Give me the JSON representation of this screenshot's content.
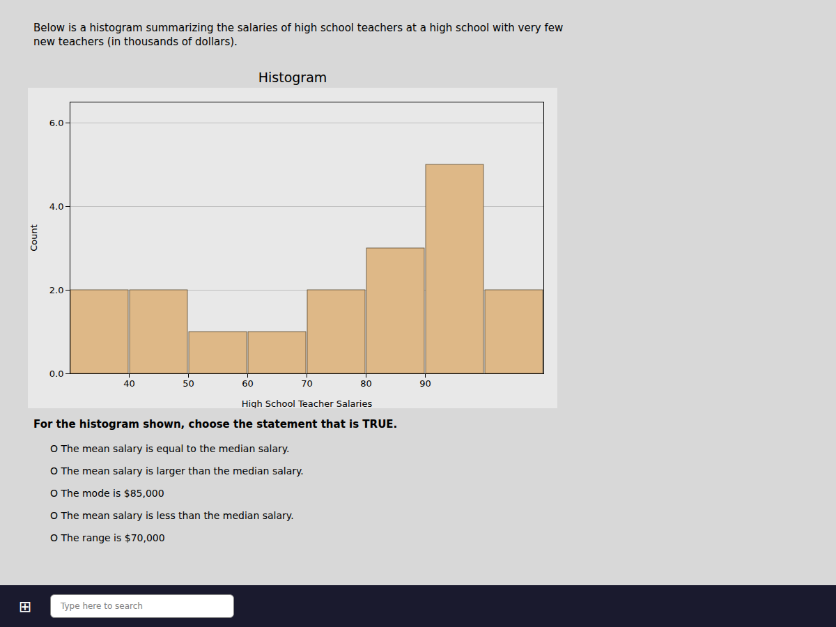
{
  "chart_data": {
    "type": "histogram",
    "title": "Histogram",
    "subtitle": "Below is a histogram summarizing the salaries of high school teachers at a high school with very few\nnew teachers (in thousands of dollars).",
    "xlabel": "High School Teacher Salaries",
    "ylabel": "Count",
    "bins": [
      30,
      40,
      50,
      60,
      70,
      80,
      90,
      100,
      110
    ],
    "values": [
      2,
      2,
      1,
      1,
      2,
      3,
      5,
      2
    ],
    "color": "#DEB887",
    "xlim": [
      30,
      110
    ],
    "xticks": [
      40,
      50,
      60,
      70,
      80,
      90
    ],
    "ylim": [
      0,
      6.5
    ],
    "yticks": [
      0,
      2,
      4,
      6
    ],
    "grid": true,
    "annotations": [
      "For the histogram shown, choose the statement that is TRUE.",
      "O The mean salary is equal to the median salary.",
      "O The mean salary is larger than the median salary.",
      "O The mode is $85,000",
      "O The mean salary is less than the median salary.",
      "O The range is $70,000",
      "⊞",
      "Type here to search"
    ]
  }
}
